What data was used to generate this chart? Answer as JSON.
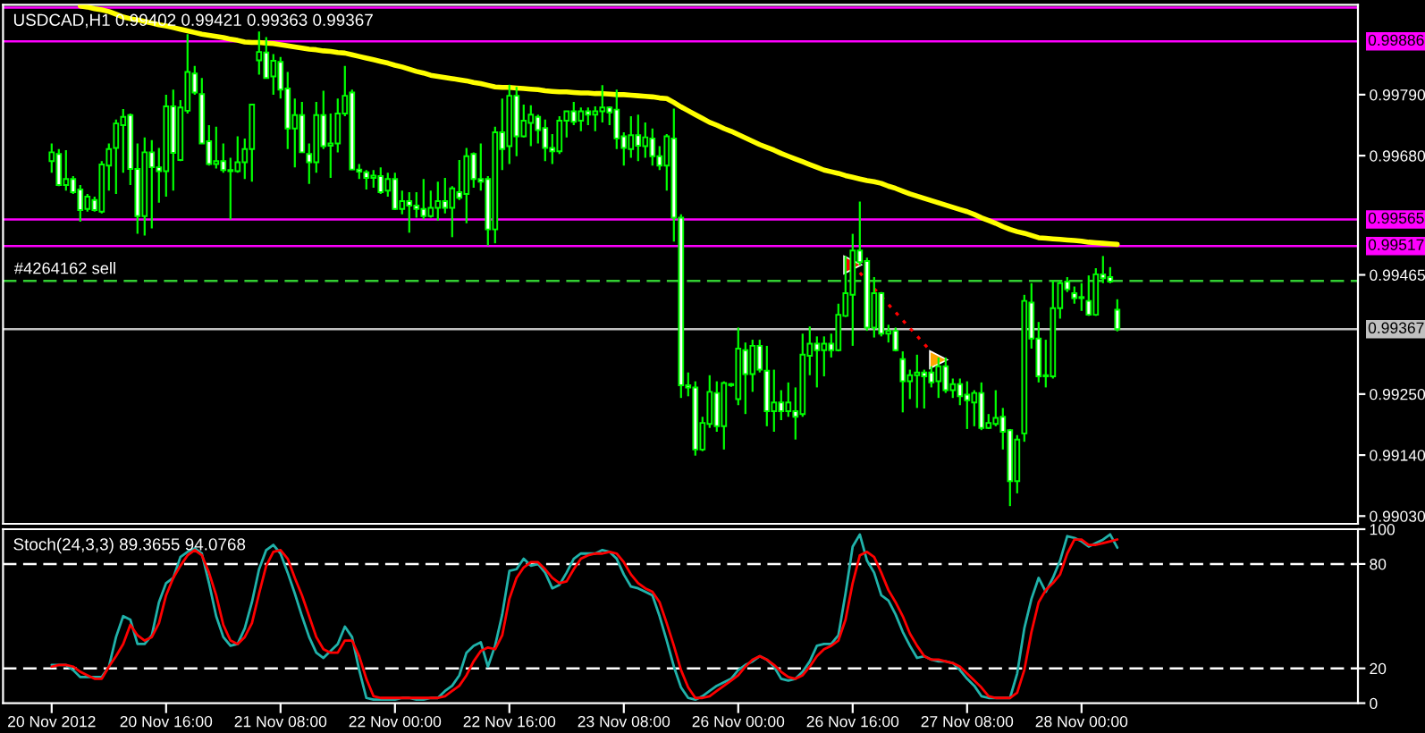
{
  "chart_data": [
    {
      "type": "candlestick",
      "title": "USDCAD,H1 0.99402 0.99421 0.99363 0.99367",
      "categories": [
        null,
        null,
        null,
        null,
        null,
        null,
        null,
        null,
        null,
        null,
        null,
        null,
        null,
        null,
        null,
        null,
        null,
        null,
        null,
        null,
        null,
        null,
        null,
        null,
        null,
        null,
        null,
        null,
        null,
        null,
        null,
        null,
        null,
        null,
        null,
        null,
        null,
        null,
        null,
        null,
        null,
        null,
        null,
        null,
        null,
        null,
        null,
        null,
        null,
        null,
        null,
        null,
        null,
        null,
        null,
        null,
        null,
        null,
        null,
        null,
        null,
        null,
        null,
        null,
        null,
        null,
        null,
        null,
        null,
        null,
        null,
        null,
        null,
        null,
        null,
        null,
        null,
        null,
        null,
        null,
        null,
        null,
        null,
        null,
        null,
        null,
        null,
        null,
        null,
        null,
        null,
        null,
        null,
        null,
        null,
        null,
        null,
        null,
        null,
        null,
        null,
        null,
        null,
        null,
        null,
        null,
        null,
        null,
        null,
        null,
        null,
        null,
        null,
        null,
        null,
        null,
        null,
        null,
        null,
        null,
        null,
        null,
        null,
        null,
        null,
        null,
        null,
        null,
        null,
        null,
        null,
        null,
        null,
        null,
        null,
        null,
        null,
        null,
        null,
        null,
        null,
        null,
        null,
        null,
        null,
        null,
        null,
        null,
        null,
        null
      ],
      "ohlc": [
        [
          0.9967,
          0.99702,
          0.99649,
          0.99686
        ],
        [
          0.99683,
          0.99692,
          0.99625,
          0.99627
        ],
        [
          0.99627,
          0.9969,
          0.99617,
          0.99638
        ],
        [
          0.99638,
          0.99643,
          0.99611,
          0.99614
        ],
        [
          0.99619,
          0.99627,
          0.99561,
          0.99582
        ],
        [
          0.99584,
          0.99611,
          0.99579,
          0.99606
        ],
        [
          0.996,
          0.99606,
          0.99579,
          0.99582
        ],
        [
          0.99579,
          0.9967,
          0.99576,
          0.99664
        ],
        [
          0.99662,
          0.99702,
          0.99617,
          0.99692
        ],
        [
          0.99694,
          0.99745,
          0.99611,
          0.99738
        ],
        [
          0.99735,
          0.99764,
          0.99649,
          0.9975
        ],
        [
          0.99753,
          0.99756,
          0.99627,
          0.99656
        ],
        [
          0.99656,
          0.99702,
          0.99539,
          0.99571
        ],
        [
          0.99571,
          0.99713,
          0.99536,
          0.99686
        ],
        [
          0.99686,
          0.99708,
          0.99549,
          0.99659
        ],
        [
          0.99659,
          0.99694,
          0.99595,
          0.99652
        ],
        [
          0.99652,
          0.9979,
          0.99606,
          0.99769
        ],
        [
          0.99769,
          0.99799,
          0.99617,
          0.99685
        ],
        [
          0.99672,
          0.9978,
          0.9967,
          0.99767
        ],
        [
          0.99761,
          0.99899,
          0.99756,
          0.99831
        ],
        [
          0.99828,
          0.99842,
          0.9979,
          0.99794
        ],
        [
          0.99791,
          0.9982,
          0.99702,
          0.99702
        ],
        [
          0.99706,
          0.99735,
          0.99662,
          0.99665
        ],
        [
          0.99665,
          0.99732,
          0.99657,
          0.9967
        ],
        [
          0.9967,
          0.99702,
          0.99649,
          0.99654
        ],
        [
          0.99654,
          0.99676,
          0.99565,
          0.99652
        ],
        [
          0.99652,
          0.99715,
          0.99649,
          0.99668
        ],
        [
          0.99668,
          0.99711,
          0.99638,
          0.99692
        ],
        [
          0.99692,
          0.99772,
          0.99633,
          0.99772
        ],
        [
          0.99852,
          0.99904,
          0.99826,
          0.99867
        ],
        [
          0.99866,
          0.99894,
          0.9982,
          0.9982
        ],
        [
          0.99823,
          0.99863,
          0.9979,
          0.99851
        ],
        [
          0.99849,
          0.99858,
          0.99783,
          0.99799
        ],
        [
          0.99801,
          0.99831,
          0.99692,
          0.99729
        ],
        [
          0.99729,
          0.99783,
          0.99659,
          0.99753
        ],
        [
          0.99753,
          0.99777,
          0.99686,
          0.99686
        ],
        [
          0.99683,
          0.99702,
          0.99629,
          0.99668
        ],
        [
          0.99668,
          0.99777,
          0.99649,
          0.99753
        ],
        [
          0.99753,
          0.99797,
          0.99692,
          0.99697
        ],
        [
          0.99698,
          0.99756,
          0.9964,
          0.99702
        ],
        [
          0.99702,
          0.99783,
          0.99686,
          0.99756
        ],
        [
          0.99756,
          0.99842,
          0.99751,
          0.99788
        ],
        [
          0.99794,
          0.99799,
          0.99654,
          0.99655
        ],
        [
          0.99655,
          0.99665,
          0.99638,
          0.99651
        ],
        [
          0.9965,
          0.99654,
          0.99619,
          0.9964
        ],
        [
          0.9964,
          0.99654,
          0.99622,
          0.99644
        ],
        [
          0.99643,
          0.99659,
          0.99611,
          0.99614
        ],
        [
          0.99617,
          0.99649,
          0.99606,
          0.99638
        ],
        [
          0.99638,
          0.99649,
          0.99582,
          0.99584
        ],
        [
          0.99584,
          0.99617,
          0.99574,
          0.99598
        ],
        [
          0.99598,
          0.99614,
          0.99541,
          0.9959
        ],
        [
          0.9959,
          0.99614,
          0.99568,
          0.99584
        ],
        [
          0.99584,
          0.99638,
          0.99565,
          0.99571
        ],
        [
          0.99571,
          0.99617,
          0.99568,
          0.99586
        ],
        [
          0.99586,
          0.99633,
          0.99563,
          0.99598
        ],
        [
          0.99598,
          0.9964,
          0.99576,
          0.99586
        ],
        [
          0.99586,
          0.99625,
          0.99533,
          0.99621
        ],
        [
          0.99614,
          0.99672,
          0.996,
          0.99604
        ],
        [
          0.99611,
          0.99694,
          0.99558,
          0.99679
        ],
        [
          0.99683,
          0.99686,
          0.99622,
          0.99638
        ],
        [
          0.99638,
          0.99702,
          0.99617,
          0.99633
        ],
        [
          0.99638,
          0.99643,
          0.99518,
          0.99547
        ],
        [
          0.99547,
          0.99732,
          0.99522,
          0.99722
        ],
        [
          0.99722,
          0.99783,
          0.99654,
          0.99692
        ],
        [
          0.99697,
          0.99808,
          0.99665,
          0.99788
        ],
        [
          0.99788,
          0.99804,
          0.99679,
          0.99715
        ],
        [
          0.99715,
          0.99772,
          0.99713,
          0.99743
        ],
        [
          0.99739,
          0.99771,
          0.99697,
          0.99754
        ],
        [
          0.9975,
          0.99754,
          0.99702,
          0.99726
        ],
        [
          0.9973,
          0.99745,
          0.9967,
          0.99694
        ],
        [
          0.99694,
          0.99719,
          0.99665,
          0.99688
        ],
        [
          0.99688,
          0.99751,
          0.99683,
          0.99743
        ],
        [
          0.99743,
          0.99761,
          0.99713,
          0.9976
        ],
        [
          0.9976,
          0.99777,
          0.99735,
          0.99741
        ],
        [
          0.99743,
          0.99767,
          0.99724,
          0.9976
        ],
        [
          0.9976,
          0.99767,
          0.99735,
          0.99754
        ],
        [
          0.99754,
          0.99769,
          0.99724,
          0.9976
        ],
        [
          0.9976,
          0.99807,
          0.9974,
          0.99767
        ],
        [
          0.99767,
          0.99769,
          0.99735,
          0.99758
        ],
        [
          0.99763,
          0.99799,
          0.99692,
          0.99711
        ],
        [
          0.99715,
          0.99722,
          0.99662,
          0.99694
        ],
        [
          0.99692,
          0.99751,
          0.99676,
          0.99717
        ],
        [
          0.99717,
          0.99754,
          0.9967,
          0.99698
        ],
        [
          0.99697,
          0.9974,
          0.99676,
          0.99713
        ],
        [
          0.99711,
          0.99729,
          0.99662,
          0.99679
        ],
        [
          0.99679,
          0.99697,
          0.99654,
          0.99662
        ],
        [
          0.99662,
          0.99719,
          0.99617,
          0.99715
        ],
        [
          0.99711,
          0.99765,
          0.99525,
          0.99568
        ],
        [
          0.99568,
          0.99574,
          0.99243,
          0.99266
        ],
        [
          0.99266,
          0.99289,
          0.99246,
          0.99262
        ],
        [
          0.99262,
          0.99273,
          0.99139,
          0.9915
        ],
        [
          0.9915,
          0.99209,
          0.99147,
          0.99198
        ],
        [
          0.99196,
          0.99284,
          0.99189,
          0.99254
        ],
        [
          0.99252,
          0.99273,
          0.99182,
          0.99192
        ],
        [
          0.99192,
          0.99273,
          0.9915,
          0.9927
        ],
        [
          0.99268,
          0.9927,
          0.99263,
          0.99266
        ],
        [
          0.99241,
          0.9937,
          0.9923,
          0.99332
        ],
        [
          0.99329,
          0.99343,
          0.99214,
          0.99286
        ],
        [
          0.99286,
          0.99348,
          0.99254,
          0.99337
        ],
        [
          0.99337,
          0.99348,
          0.99289,
          0.99294
        ],
        [
          0.99292,
          0.99337,
          0.99192,
          0.99219
        ],
        [
          0.99219,
          0.99294,
          0.99182,
          0.99235
        ],
        [
          0.99235,
          0.99257,
          0.99203,
          0.99219
        ],
        [
          0.99219,
          0.99271,
          0.99209,
          0.99235
        ],
        [
          0.99219,
          0.99262,
          0.99168,
          0.99209
        ],
        [
          0.99214,
          0.99359,
          0.99209,
          0.99321
        ],
        [
          0.99319,
          0.99372,
          0.99284,
          0.99341
        ],
        [
          0.99341,
          0.99354,
          0.99262,
          0.99329
        ],
        [
          0.99329,
          0.99354,
          0.99282,
          0.99341
        ],
        [
          0.99341,
          0.99359,
          0.99316,
          0.99329
        ],
        [
          0.99329,
          0.99413,
          0.99327,
          0.99393
        ],
        [
          0.99391,
          0.99499,
          0.99389,
          0.99432
        ],
        [
          0.99429,
          0.99539,
          0.99337,
          0.99509
        ],
        [
          0.99509,
          0.99597,
          0.99482,
          0.99488
        ],
        [
          0.9949,
          0.99496,
          0.99364,
          0.9937
        ],
        [
          0.9937,
          0.99461,
          0.99352,
          0.99432
        ],
        [
          0.99432,
          0.99434,
          0.99354,
          0.99359
        ],
        [
          0.99359,
          0.99375,
          0.99343,
          0.99364
        ],
        [
          0.99364,
          0.9937,
          0.99327,
          0.99329
        ],
        [
          0.99313,
          0.99327,
          0.99217,
          0.99273
        ],
        [
          0.99273,
          0.99294,
          0.99241,
          0.99284
        ],
        [
          0.99284,
          0.99321,
          0.99225,
          0.99289
        ],
        [
          0.99289,
          0.99294,
          0.99224,
          0.99282
        ],
        [
          0.99289,
          0.993,
          0.99262,
          0.99271
        ],
        [
          0.99273,
          0.99316,
          0.99243,
          0.993
        ],
        [
          0.993,
          0.99316,
          0.99252,
          0.99257
        ],
        [
          0.99257,
          0.99278,
          0.99243,
          0.99268
        ],
        [
          0.99268,
          0.99278,
          0.9923,
          0.99246
        ],
        [
          0.99249,
          0.99273,
          0.99187,
          0.99239
        ],
        [
          0.99235,
          0.99257,
          0.99192,
          0.99252
        ],
        [
          0.99252,
          0.99271,
          0.99185,
          0.99189
        ],
        [
          0.99189,
          0.99214,
          0.99187,
          0.99198
        ],
        [
          0.99196,
          0.99257,
          0.99192,
          0.99207
        ],
        [
          0.99209,
          0.99225,
          0.9915,
          0.99182
        ],
        [
          0.99185,
          0.99187,
          0.99048,
          0.99093
        ],
        [
          0.99093,
          0.99176,
          0.99071,
          0.99168
        ],
        [
          0.99179,
          0.99429,
          0.99164,
          0.99418
        ],
        [
          0.99415,
          0.9945,
          0.99332,
          0.9935
        ],
        [
          0.9935,
          0.9938,
          0.99271,
          0.99282
        ],
        [
          0.99282,
          0.99348,
          0.99262,
          0.99284
        ],
        [
          0.99282,
          0.99455,
          0.99278,
          0.99405
        ],
        [
          0.99405,
          0.99455,
          0.99386,
          0.9945
        ],
        [
          0.99453,
          0.99461,
          0.99434,
          0.99439
        ],
        [
          0.99432,
          0.99444,
          0.99413,
          0.99423
        ],
        [
          0.99423,
          0.9945,
          0.994,
          0.99425
        ],
        [
          0.99418,
          0.99464,
          0.99391,
          0.99393
        ],
        [
          0.99393,
          0.99477,
          0.99391,
          0.99466
        ],
        [
          0.99466,
          0.99499,
          0.9945,
          0.99459
        ],
        [
          0.99461,
          0.99479,
          0.9945,
          0.99453
        ],
        [
          0.99402,
          0.99421,
          0.99363,
          0.99367
        ]
      ],
      "color": "#00ff00",
      "colors": [
        "#000000",
        "#ffffff",
        "#000000",
        "#ffffff",
        "#ffffff",
        "#000000",
        "#ffffff",
        "#000000",
        "#000000",
        "#000000",
        "#000000",
        "#ffffff",
        "#ffffff",
        "#000000",
        "#ffffff",
        "#ffffff",
        "#000000",
        "#ffffff",
        "#000000",
        "#000000",
        "#ffffff",
        "#ffffff",
        "#ffffff",
        "#000000",
        "#ffffff",
        "#ffffff",
        "#000000",
        "#000000",
        "#000000",
        "#000000",
        "#ffffff",
        "#000000",
        "#ffffff",
        "#ffffff",
        "#000000",
        "#ffffff",
        "#ffffff",
        "#000000",
        "#ffffff",
        "#000000",
        "#000000",
        "#000000",
        "#ffffff",
        "#ffffff",
        "#ffffff",
        "#000000",
        "#ffffff",
        "#000000",
        "#ffffff",
        "#000000",
        "#ffffff",
        "#ffffff",
        "#ffffff",
        "#000000",
        "#000000",
        "#ffffff",
        "#000000",
        "#ffffff",
        "#000000",
        "#ffffff",
        "#ffffff",
        "#ffffff",
        "#000000",
        "#ffffff",
        "#000000",
        "#ffffff",
        "#000000",
        "#000000",
        "#ffffff",
        "#ffffff",
        "#ffffff",
        "#000000",
        "#000000",
        "#ffffff",
        "#000000",
        "#ffffff",
        "#000000",
        "#000000",
        "#ffffff",
        "#ffffff",
        "#ffffff",
        "#000000",
        "#ffffff",
        "#000000",
        "#ffffff",
        "#ffffff",
        "#000000",
        "#ffffff",
        "#ffffff",
        "#ffffff",
        "#ffffff",
        "#000000",
        "#000000",
        "#ffffff",
        "#000000",
        "#ffffff",
        "#000000",
        "#ffffff",
        "#000000",
        "#ffffff",
        "#ffffff",
        "#000000",
        "#ffffff",
        "#000000",
        "#ffffff",
        "#000000",
        "#000000",
        "#ffffff",
        "#000000",
        "#ffffff",
        "#000000",
        "#000000",
        "#000000",
        "#ffffff",
        "#ffffff",
        "#000000",
        "#ffffff",
        "#000000",
        "#ffffff",
        "#ffffff",
        "#000000",
        "#000000",
        "#ffffff",
        "#ffffff",
        "#000000",
        "#ffffff",
        "#000000",
        "#ffffff",
        "#ffffff",
        "#000000",
        "#ffffff",
        "#000000",
        "#000000",
        "#ffffff",
        "#ffffff",
        "#000000",
        "#000000",
        "#ffffff",
        "#ffffff",
        "#000000",
        "#000000",
        "#000000",
        "#ffffff",
        "#ffffff",
        "#000000",
        "#ffffff",
        "#000000",
        "#ffffff",
        "#ffffff",
        "#ffffff"
      ],
      "series": [
        {
          "type": "line",
          "color": "#ffff00",
          "values": [
            null,
            null,
            null,
            null,
            0.9995,
            0.99948,
            0.99945,
            0.99943,
            0.9994,
            0.99935,
            0.9993,
            0.99927,
            0.99925,
            0.99922,
            0.99919,
            0.99916,
            0.99914,
            0.99911,
            0.99908,
            0.99905,
            0.99902,
            0.99899,
            0.99897,
            0.99895,
            0.99893,
            0.9989,
            0.99888,
            0.99885,
            0.99884,
            0.99884,
            0.99883,
            0.99882,
            0.9988,
            0.99878,
            0.99876,
            0.99874,
            0.99872,
            0.99871,
            0.99869,
            0.99868,
            0.99866,
            0.99865,
            0.99862,
            0.99859,
            0.99856,
            0.99853,
            0.9985,
            0.99847,
            0.99843,
            0.9984,
            0.99836,
            0.99832,
            0.99829,
            0.99825,
            0.99823,
            0.99821,
            0.99819,
            0.99817,
            0.99815,
            0.99812,
            0.9981,
            0.99807,
            0.99804,
            0.99803,
            0.99803,
            0.99802,
            0.99801,
            0.998,
            0.99799,
            0.99797,
            0.99796,
            0.99795,
            0.99795,
            0.99794,
            0.99793,
            0.99793,
            0.99792,
            0.99792,
            0.99791,
            0.9979,
            0.9979,
            0.99789,
            0.99788,
            0.99787,
            0.99786,
            0.99784,
            0.99783,
            0.99776,
            0.99768,
            0.99761,
            0.99754,
            0.99747,
            0.9974,
            0.99735,
            0.99729,
            0.99724,
            0.99718,
            0.99712,
            0.99706,
            0.997,
            0.99695,
            0.9969,
            0.99684,
            0.99679,
            0.99674,
            0.99669,
            0.99664,
            0.99659,
            0.99654,
            0.99651,
            0.99648,
            0.99644,
            0.99641,
            0.99638,
            0.99635,
            0.99633,
            0.9963,
            0.99625,
            0.99621,
            0.99616,
            0.99611,
            0.99607,
            0.99603,
            0.99599,
            0.99595,
            0.99591,
            0.99587,
            0.99583,
            0.99579,
            0.99574,
            0.99568,
            0.99563,
            0.99558,
            0.99552,
            0.99547,
            0.99543,
            0.9954,
            0.99536,
            0.99532,
            0.99531,
            0.9953,
            0.99529,
            0.99528,
            0.99527,
            0.99526,
            0.99524,
            0.99523,
            0.99522,
            0.99521,
            0.9952
          ]
        },
        {
          "type": "scatter",
          "color": "#ff0000",
          "line_style": "dotted",
          "marker": "triangle",
          "colors": [
            null,
            null,
            null,
            null,
            null,
            null,
            null,
            null,
            null,
            null,
            null,
            null,
            null,
            null,
            null,
            null,
            null,
            null,
            null,
            null,
            null,
            null,
            null,
            null,
            null,
            null,
            null,
            null,
            null,
            null,
            null,
            null,
            null,
            null,
            null,
            null,
            null,
            null,
            null,
            null,
            null,
            null,
            null,
            null,
            null,
            null,
            null,
            null,
            null,
            null,
            null,
            null,
            null,
            null,
            null,
            null,
            null,
            null,
            null,
            null,
            null,
            null,
            null,
            null,
            null,
            null,
            null,
            null,
            null,
            null,
            null,
            null,
            null,
            null,
            null,
            null,
            null,
            null,
            null,
            null,
            null,
            null,
            null,
            null,
            null,
            null,
            null,
            null,
            null,
            null,
            null,
            null,
            null,
            null,
            null,
            null,
            null,
            null,
            null,
            null,
            null,
            null,
            null,
            null,
            null,
            null,
            null,
            null,
            null,
            null,
            null,
            null,
            "#ff0000",
            null,
            null,
            null,
            null,
            null,
            null,
            null,
            null,
            null,
            null,
            null,
            "#ffa500",
            null,
            null,
            null,
            null,
            null,
            null,
            null,
            null,
            null,
            null,
            null,
            null,
            null,
            null,
            null,
            null,
            null,
            null,
            null,
            null,
            null,
            null,
            null,
            null,
            null
          ],
          "values": [
            null,
            null,
            null,
            null,
            null,
            null,
            null,
            null,
            null,
            null,
            null,
            null,
            null,
            null,
            null,
            null,
            null,
            null,
            null,
            null,
            null,
            null,
            null,
            null,
            null,
            null,
            null,
            null,
            null,
            null,
            null,
            null,
            null,
            null,
            null,
            null,
            null,
            null,
            null,
            null,
            null,
            null,
            null,
            null,
            null,
            null,
            null,
            null,
            null,
            null,
            null,
            null,
            null,
            null,
            null,
            null,
            null,
            null,
            null,
            null,
            null,
            null,
            null,
            null,
            null,
            null,
            null,
            null,
            null,
            null,
            null,
            null,
            null,
            null,
            null,
            null,
            null,
            null,
            null,
            null,
            null,
            null,
            null,
            null,
            null,
            null,
            null,
            null,
            null,
            null,
            null,
            null,
            null,
            null,
            null,
            null,
            null,
            null,
            null,
            null,
            null,
            null,
            null,
            null,
            null,
            null,
            null,
            null,
            null,
            null,
            null,
            null,
            0.99483,
            null,
            null,
            null,
            null,
            null,
            null,
            null,
            null,
            null,
            null,
            null,
            0.99312,
            null,
            null,
            null,
            null,
            null,
            null,
            null,
            null,
            null,
            null,
            null,
            null,
            null,
            null,
            null,
            null,
            null,
            null,
            null,
            null,
            null,
            null,
            null,
            null,
            null
          ]
        }
      ],
      "ylim": [
        0.99016,
        0.99952
      ],
      "yticks": [
        {
          "value": 0.9979,
          "label": "0.99790"
        },
        {
          "value": 0.9968,
          "label": "0.99680"
        },
        0.99465,
        {
          "value": 0.9925,
          "label": "0.99250"
        },
        {
          "value": 0.9914,
          "label": "0.99140"
        },
        {
          "value": 0.9903,
          "label": "0.99030"
        }
      ],
      "ref_lines": [
        {
          "axis": "y",
          "value": 0.99947,
          "color": "#ff00ff"
        },
        {
          "axis": "y",
          "value": 0.99886,
          "label": "0.99886",
          "color": "#ff00ff"
        },
        {
          "axis": "y",
          "value": 0.99565,
          "label": "0.99565",
          "color": "#ff00ff"
        },
        {
          "axis": "y",
          "value": 0.99517,
          "label": "0.99517",
          "color": "#ff00ff"
        },
        {
          "axis": "y",
          "value": 0.99454,
          "label": "#4264162 sell",
          "color": "#32cd32",
          "line_style": "dashed"
        },
        {
          "axis": "y",
          "value": 0.99367,
          "label": "0.99367",
          "color": "#c0c0c0"
        }
      ],
      "tick_labels": "y"
    },
    {
      "type": "line",
      "title": "Stoch(24,3,3) 89.3655 94.0768",
      "categories": [
        "20 Nov 2012",
        null,
        null,
        null,
        null,
        null,
        null,
        null,
        null,
        null,
        null,
        null,
        null,
        null,
        null,
        null,
        "20 Nov 16:00",
        null,
        null,
        null,
        null,
        null,
        null,
        null,
        null,
        null,
        null,
        null,
        null,
        null,
        null,
        null,
        "21 Nov 08:00",
        null,
        null,
        null,
        null,
        null,
        null,
        null,
        null,
        null,
        null,
        null,
        null,
        null,
        null,
        null,
        "22 Nov 00:00",
        null,
        null,
        null,
        null,
        null,
        null,
        null,
        null,
        null,
        null,
        null,
        null,
        null,
        null,
        null,
        "22 Nov 16:00",
        null,
        null,
        null,
        null,
        null,
        null,
        null,
        null,
        null,
        null,
        null,
        null,
        null,
        null,
        null,
        "23 Nov 08:00",
        null,
        null,
        null,
        null,
        null,
        null,
        null,
        null,
        null,
        null,
        null,
        null,
        null,
        null,
        null,
        "26 Nov 00:00",
        null,
        null,
        null,
        null,
        null,
        null,
        null,
        null,
        null,
        null,
        null,
        null,
        null,
        null,
        null,
        "26 Nov 16:00",
        null,
        null,
        null,
        null,
        null,
        null,
        null,
        null,
        null,
        null,
        null,
        null,
        null,
        null,
        null,
        "27 Nov 08:00",
        null,
        null,
        null,
        null,
        null,
        null,
        null,
        null,
        null,
        null,
        null,
        null,
        null,
        null,
        null,
        "28 Nov 00:00",
        null,
        null,
        null,
        null,
        null
      ],
      "series": [
        {
          "color": "#20b2aa",
          "values": [
            22,
            22,
            22,
            19,
            15,
            15,
            15,
            15,
            21,
            38,
            50,
            48,
            34,
            34,
            39,
            58,
            69,
            72,
            84,
            87,
            89,
            86,
            69,
            50,
            38,
            33,
            34,
            43,
            58,
            77,
            88,
            91,
            86,
            75,
            63,
            50,
            38,
            29,
            26,
            30,
            34,
            44,
            38,
            19,
            3,
            2,
            2,
            2,
            2,
            3,
            3,
            2,
            2,
            3,
            3,
            7,
            10,
            16,
            29,
            33,
            35,
            21,
            33,
            51,
            76,
            77,
            83,
            79,
            80,
            75,
            66,
            68,
            75,
            83,
            86,
            86,
            86,
            88,
            87,
            83,
            74,
            67,
            66,
            64,
            62,
            50,
            36,
            21,
            9,
            3,
            2,
            4,
            7,
            10,
            12,
            14,
            19,
            22,
            24,
            27,
            25,
            21,
            14,
            13,
            14,
            18,
            24,
            33,
            34,
            34,
            39,
            63,
            90,
            97,
            82,
            75,
            62,
            59,
            51,
            41,
            33,
            26,
            27,
            25,
            24,
            24,
            23,
            19,
            14,
            10,
            4,
            3,
            3,
            3,
            3,
            17,
            43,
            60,
            72,
            64,
            72,
            82,
            96,
            95,
            93,
            90,
            92,
            94,
            97,
            89.3655
          ]
        },
        {
          "color": "#ff0000",
          "values": [
            21,
            22,
            22,
            21,
            18,
            16,
            14,
            14,
            21,
            27,
            34,
            45,
            39,
            36,
            38,
            46,
            62,
            72,
            79,
            85,
            88,
            85,
            75,
            62,
            45,
            36,
            34,
            38,
            46,
            63,
            79,
            87,
            88,
            83,
            72,
            62,
            50,
            38,
            31,
            29,
            29,
            36,
            36,
            27,
            14,
            4,
            3,
            3,
            3,
            3,
            3,
            3,
            3,
            3,
            3,
            4,
            7,
            10,
            16,
            24,
            30,
            32,
            31,
            39,
            60,
            72,
            78,
            81,
            81,
            77,
            72,
            69,
            70,
            77,
            83,
            85,
            86,
            86,
            87,
            86,
            81,
            74,
            69,
            66,
            64,
            58,
            46,
            33,
            19,
            9,
            3,
            3,
            4,
            7,
            10,
            13,
            16,
            21,
            25,
            27,
            25,
            22,
            18,
            15,
            14,
            16,
            21,
            27,
            31,
            33,
            36,
            48,
            69,
            85,
            87,
            84,
            75,
            65,
            58,
            50,
            40,
            33,
            27,
            25,
            25,
            24,
            23,
            21,
            17,
            13,
            9,
            4,
            3,
            3,
            3,
            6,
            19,
            41,
            58,
            65,
            69,
            74,
            86,
            94,
            94,
            91,
            91,
            92,
            93,
            94.0768
          ]
        }
      ],
      "ylim": [
        0,
        100
      ],
      "yticks": [
        0,
        20,
        80,
        100
      ],
      "ref_lines": [
        {
          "axis": "y",
          "value": 80,
          "color": "#ffffff",
          "line_style": "dashed"
        },
        {
          "axis": "y",
          "value": 20,
          "color": "#ffffff",
          "line_style": "dashed"
        }
      ]
    }
  ]
}
